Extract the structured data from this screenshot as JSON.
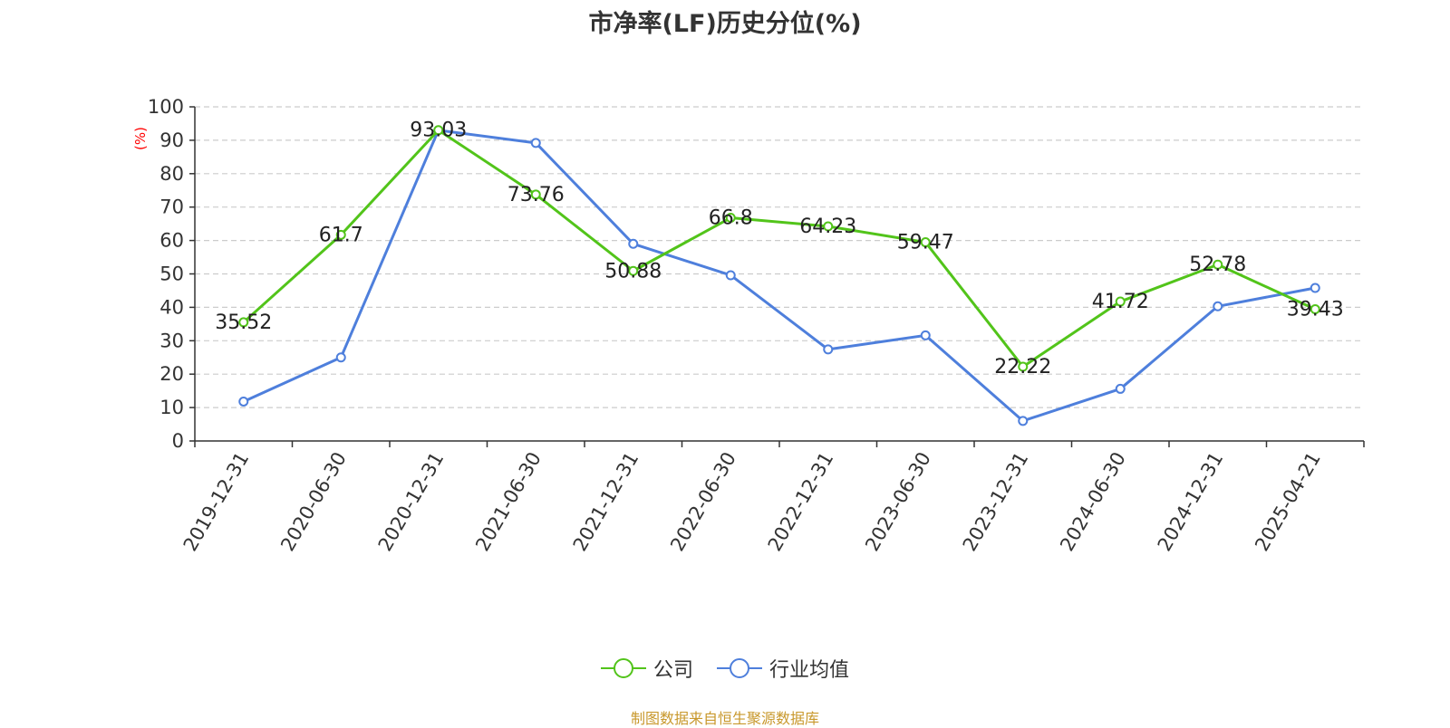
{
  "chart_data": {
    "type": "line",
    "title": "市净率(LF)历史分位(%)",
    "ylabel": "(%)",
    "xlabel": "",
    "ylim": [
      0,
      100
    ],
    "yticks": [
      0,
      10,
      20,
      30,
      40,
      50,
      60,
      70,
      80,
      90,
      100
    ],
    "grid": true,
    "legend_position": "bottom",
    "categories": [
      "2019-12-31",
      "2020-06-30",
      "2020-12-31",
      "2021-06-30",
      "2021-12-31",
      "2022-06-30",
      "2022-12-31",
      "2023-06-30",
      "2023-12-31",
      "2024-06-30",
      "2024-12-31",
      "2025-04-21"
    ],
    "series": [
      {
        "name": "公司",
        "color": "#52c41a",
        "values": [
          35.52,
          61.7,
          93.03,
          73.76,
          50.88,
          66.8,
          64.23,
          59.47,
          22.22,
          41.72,
          52.78,
          39.43
        ],
        "labels": [
          "35.52",
          "61.7",
          "93.03",
          "73.76",
          "50.88",
          "66.8",
          "64.23",
          "59.47",
          "22.22",
          "41.72",
          "52.78",
          "39.43"
        ]
      },
      {
        "name": "行业均值",
        "color": "#4e7fdc",
        "values": [
          11.8,
          25.0,
          93.0,
          89.2,
          59.0,
          49.6,
          27.4,
          31.6,
          6.0,
          15.6,
          40.3,
          45.8
        ]
      }
    ],
    "source": "制图数据来自恒生聚源数据库"
  }
}
